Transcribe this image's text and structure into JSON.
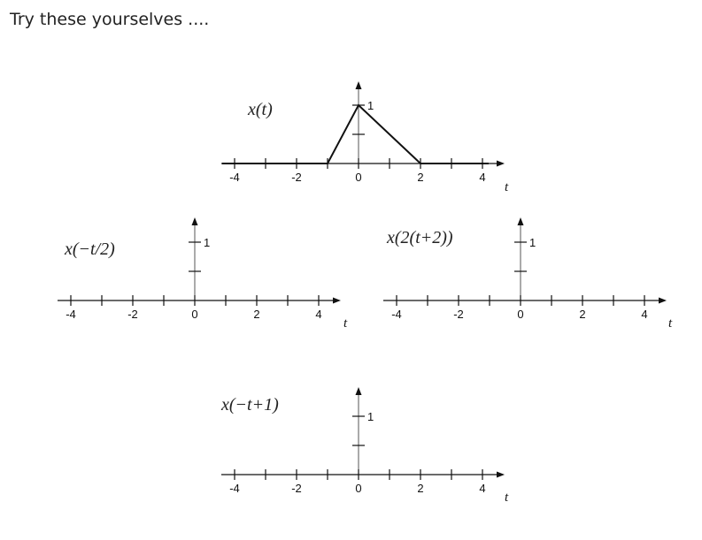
{
  "heading": "Try these yourselves ....",
  "panels": [
    {
      "id": "x-t",
      "label": "x(t)",
      "ticks": [
        "-4",
        "-2",
        "0",
        "2",
        "4"
      ],
      "t_label": "t",
      "peak_label": "1",
      "signal": [
        [
          -4.4,
          0
        ],
        [
          -1,
          0
        ],
        [
          0,
          1
        ],
        [
          2,
          0
        ],
        [
          4.2,
          0
        ]
      ]
    },
    {
      "id": "x-neg-t-half",
      "label": "x(−t/2)",
      "ticks": [
        "-4",
        "-2",
        "0",
        "2",
        "4"
      ],
      "t_label": "t",
      "peak_label": "1",
      "signal": []
    },
    {
      "id": "x-2-t-plus-2",
      "label": "x(2(t+2))",
      "ticks": [
        "-4",
        "-2",
        "0",
        "2",
        "4"
      ],
      "t_label": "t",
      "peak_label": "1",
      "signal": []
    },
    {
      "id": "x-neg-t-plus-1",
      "label": "x(−t+1)",
      "ticks": [
        "-4",
        "-2",
        "0",
        "2",
        "4"
      ],
      "t_label": "t",
      "peak_label": "1",
      "signal": []
    }
  ]
}
